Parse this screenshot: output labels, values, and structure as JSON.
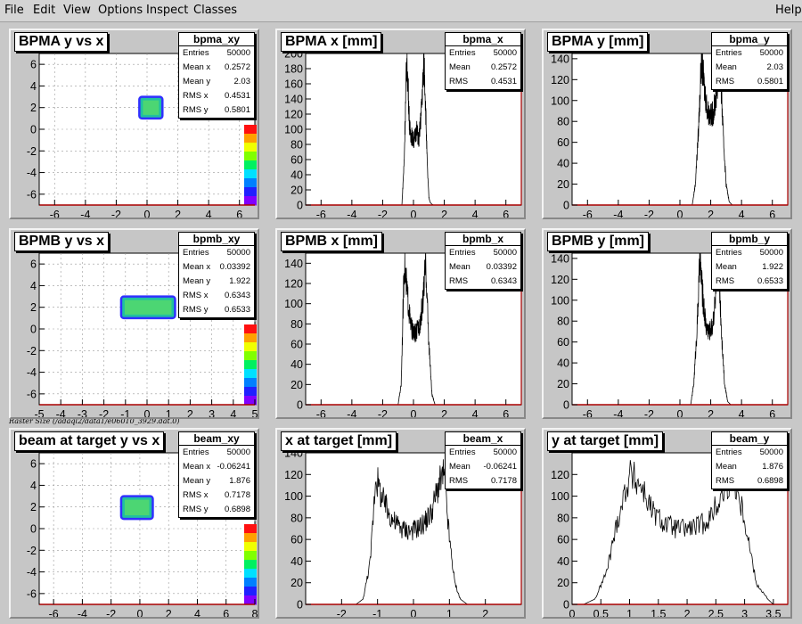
{
  "menu": {
    "file": "File",
    "edit": "Edit",
    "view": "View",
    "options": "Options",
    "inspect": "Inspect",
    "classes": "Classes",
    "help": "Help"
  },
  "raster_label": "Raster Size (/adaql2/data1/e06010_3929.dat.0)",
  "colors": {
    "frame": "#c6c6c6",
    "axis_x": "#aa0000",
    "histo": "#000000",
    "grid": "#999999"
  },
  "pads": [
    {
      "title": "BPMA y vs x",
      "kind": "2d",
      "stats": {
        "name": "bpma_xy",
        "rows": [
          [
            "Entries",
            "50000"
          ],
          [
            "Mean x",
            "0.2572"
          ],
          [
            "Mean y",
            "2.03"
          ],
          [
            "RMS x",
            "0.4531"
          ],
          [
            "RMS y",
            "0.5801"
          ]
        ]
      }
    },
    {
      "title": "BPMA x [mm]",
      "kind": "1d",
      "stats": {
        "name": "bpma_x",
        "rows": [
          [
            "Entries",
            "50000"
          ],
          [
            "Mean",
            "0.2572"
          ],
          [
            "RMS",
            "0.4531"
          ]
        ]
      }
    },
    {
      "title": "BPMA y [mm]",
      "kind": "1d",
      "stats": {
        "name": "bpma_y",
        "rows": [
          [
            "Entries",
            "50000"
          ],
          [
            "Mean",
            "2.03"
          ],
          [
            "RMS",
            "0.5801"
          ]
        ]
      }
    },
    {
      "title": "BPMB y vs x",
      "kind": "2d",
      "stats": {
        "name": "bpmb_xy",
        "rows": [
          [
            "Entries",
            "50000"
          ],
          [
            "Mean x",
            "0.03392"
          ],
          [
            "Mean y",
            "1.922"
          ],
          [
            "RMS x",
            "0.6343"
          ],
          [
            "RMS y",
            "0.6533"
          ]
        ]
      }
    },
    {
      "title": "BPMB x [mm]",
      "kind": "1d",
      "stats": {
        "name": "bpmb_x",
        "rows": [
          [
            "Entries",
            "50000"
          ],
          [
            "Mean",
            "0.03392"
          ],
          [
            "RMS",
            "0.6343"
          ]
        ]
      }
    },
    {
      "title": "BPMB y [mm]",
      "kind": "1d",
      "stats": {
        "name": "bpmb_y",
        "rows": [
          [
            "Entries",
            "50000"
          ],
          [
            "Mean",
            "1.922"
          ],
          [
            "RMS",
            "0.6533"
          ]
        ]
      }
    },
    {
      "title": "beam at target y vs x",
      "kind": "2d",
      "stats": {
        "name": "beam_xy",
        "rows": [
          [
            "Entries",
            "50000"
          ],
          [
            "Mean x",
            "-0.06241"
          ],
          [
            "Mean y",
            "1.876"
          ],
          [
            "RMS x",
            "0.7178"
          ],
          [
            "RMS y",
            "0.6898"
          ]
        ]
      }
    },
    {
      "title": "x at target [mm]",
      "kind": "1d",
      "stats": {
        "name": "beam_x",
        "rows": [
          [
            "Entries",
            "50000"
          ],
          [
            "Mean",
            "-0.06241"
          ],
          [
            "RMS",
            "0.7178"
          ]
        ]
      }
    },
    {
      "title": "y at target [mm]",
      "kind": "1d",
      "stats": {
        "name": "beam_y",
        "rows": [
          [
            "Entries",
            "50000"
          ],
          [
            "Mean",
            "1.876"
          ],
          [
            "RMS",
            "0.6898"
          ]
        ]
      }
    }
  ],
  "chart_data": [
    {
      "type": "heatmap",
      "title": "BPMA y vs x",
      "xlim": [
        -7,
        7
      ],
      "ylim": [
        -7,
        7
      ],
      "xticks": [
        "-6",
        "-4",
        "-2",
        "0",
        "2",
        "4",
        "6"
      ],
      "yticks": [
        "-6",
        "-4",
        "-2",
        "0",
        "2",
        "4",
        "6"
      ],
      "zticks": [
        "0",
        "20",
        "40",
        "60",
        "80"
      ],
      "grid": true,
      "box": {
        "x": [
          -0.5,
          1.0
        ],
        "y": [
          1.0,
          3.0
        ]
      }
    },
    {
      "type": "line",
      "title": "BPMA x [mm]",
      "xlim": [
        -7,
        7
      ],
      "ylim": [
        0,
        200
      ],
      "xticks": [
        "-6",
        "-4",
        "-2",
        "0",
        "2",
        "4",
        "6"
      ],
      "yticks": [
        "0",
        "20",
        "40",
        "60",
        "80",
        "100",
        "120",
        "140",
        "160",
        "180",
        "200"
      ],
      "x": [
        -0.75,
        -0.6,
        -0.45,
        -0.35,
        -0.25,
        -0.1,
        0.0,
        0.1,
        0.2,
        0.35,
        0.5,
        0.6,
        0.7,
        0.8,
        0.9,
        1.0,
        1.1,
        1.2,
        1.3
      ],
      "y": [
        0,
        60,
        190,
        160,
        100,
        90,
        85,
        90,
        100,
        85,
        120,
        160,
        190,
        120,
        50,
        10,
        3,
        1,
        0
      ]
    },
    {
      "type": "line",
      "title": "BPMA y [mm]",
      "xlim": [
        -7,
        7
      ],
      "ylim": [
        0,
        145
      ],
      "xticks": [
        "-6",
        "-4",
        "-2",
        "0",
        "2",
        "4",
        "6"
      ],
      "yticks": [
        "0",
        "20",
        "40",
        "60",
        "80",
        "100",
        "120",
        "140"
      ],
      "x": [
        0.8,
        1.0,
        1.2,
        1.4,
        1.6,
        1.8,
        2.0,
        2.2,
        2.4,
        2.6,
        2.8,
        3.0,
        3.2,
        3.4
      ],
      "y": [
        0,
        20,
        70,
        140,
        110,
        90,
        85,
        90,
        110,
        140,
        70,
        20,
        3,
        0
      ]
    },
    {
      "type": "heatmap",
      "title": "BPMB y vs x",
      "xlim": [
        -5,
        5
      ],
      "ylim": [
        -7,
        7
      ],
      "xticks": [
        "-5",
        "-4",
        "-3",
        "-2",
        "-1",
        "0",
        "1",
        "2",
        "3",
        "4",
        "5"
      ],
      "yticks": [
        "-6",
        "-4",
        "-2",
        "0",
        "2",
        "4",
        "6"
      ],
      "zticks": [
        "0",
        "10",
        "20",
        "30",
        "40",
        "50"
      ],
      "grid": true,
      "box": {
        "x": [
          -1.2,
          1.3
        ],
        "y": [
          1.0,
          3.0
        ]
      }
    },
    {
      "type": "line",
      "title": "BPMB x [mm]",
      "xlim": [
        -7,
        7
      ],
      "ylim": [
        0,
        150
      ],
      "xticks": [
        "-6",
        "-4",
        "-2",
        "0",
        "2",
        "4",
        "6"
      ],
      "yticks": [
        "0",
        "20",
        "40",
        "60",
        "80",
        "100",
        "120",
        "140"
      ],
      "x": [
        -1.0,
        -0.8,
        -0.6,
        -0.4,
        -0.2,
        0.0,
        0.2,
        0.4,
        0.6,
        0.8,
        1.0,
        1.2,
        1.4
      ],
      "y": [
        0,
        20,
        140,
        110,
        80,
        70,
        72,
        80,
        100,
        140,
        60,
        10,
        0
      ]
    },
    {
      "type": "line",
      "title": "BPMB y [mm]",
      "xlim": [
        -7,
        7
      ],
      "ylim": [
        0,
        145
      ],
      "xticks": [
        "-6",
        "-4",
        "-2",
        "0",
        "2",
        "4",
        "6"
      ],
      "yticks": [
        "0",
        "20",
        "40",
        "60",
        "80",
        "100",
        "120",
        "140"
      ],
      "x": [
        0.7,
        0.9,
        1.1,
        1.3,
        1.5,
        1.7,
        1.9,
        2.1,
        2.3,
        2.5,
        2.7,
        2.9,
        3.1,
        3.3
      ],
      "y": [
        0,
        20,
        70,
        140,
        100,
        75,
        70,
        75,
        100,
        140,
        70,
        20,
        3,
        0
      ]
    },
    {
      "type": "heatmap",
      "title": "beam at target y vs x",
      "xlim": [
        -7,
        8
      ],
      "ylim": [
        -7,
        7
      ],
      "xticks": [
        "-6",
        "-4",
        "-2",
        "0",
        "2",
        "4",
        "6",
        "8"
      ],
      "yticks": [
        "-6",
        "-4",
        "-2",
        "0",
        "2",
        "4",
        "6"
      ],
      "zticks": [
        "0",
        "20",
        "40",
        "60"
      ],
      "grid": true,
      "box": {
        "x": [
          -1.3,
          0.9
        ],
        "y": [
          0.9,
          3.0
        ]
      }
    },
    {
      "type": "line",
      "title": "x at target [mm]",
      "xlim": [
        -3,
        3
      ],
      "ylim": [
        0,
        140
      ],
      "xticks": [
        "-2",
        "-1",
        "0",
        "1",
        "2"
      ],
      "yticks": [
        "0",
        "20",
        "40",
        "60",
        "80",
        "100",
        "120",
        "140"
      ],
      "x": [
        -1.6,
        -1.4,
        -1.2,
        -1.05,
        -0.9,
        -0.7,
        -0.5,
        -0.3,
        -0.1,
        0.1,
        0.3,
        0.5,
        0.7,
        0.85,
        1.0,
        1.15,
        1.3,
        1.5
      ],
      "y": [
        0,
        5,
        40,
        120,
        100,
        85,
        75,
        70,
        68,
        70,
        75,
        85,
        110,
        120,
        60,
        20,
        5,
        0
      ]
    },
    {
      "type": "line",
      "title": "y at target [mm]",
      "xlim": [
        0,
        3.75
      ],
      "ylim": [
        0,
        140
      ],
      "xticks": [
        "0",
        "0.5",
        "1",
        "1.5",
        "2",
        "2.5",
        "3",
        "3.5"
      ],
      "yticks": [
        "0",
        "20",
        "40",
        "60",
        "80",
        "100",
        "120"
      ],
      "x": [
        0.2,
        0.4,
        0.6,
        0.8,
        1.0,
        1.2,
        1.4,
        1.6,
        1.8,
        2.0,
        2.2,
        2.4,
        2.6,
        2.8,
        3.0,
        3.2,
        3.4,
        3.5
      ],
      "y": [
        0,
        5,
        30,
        80,
        120,
        110,
        85,
        75,
        70,
        70,
        72,
        80,
        100,
        120,
        80,
        20,
        5,
        0
      ]
    }
  ]
}
